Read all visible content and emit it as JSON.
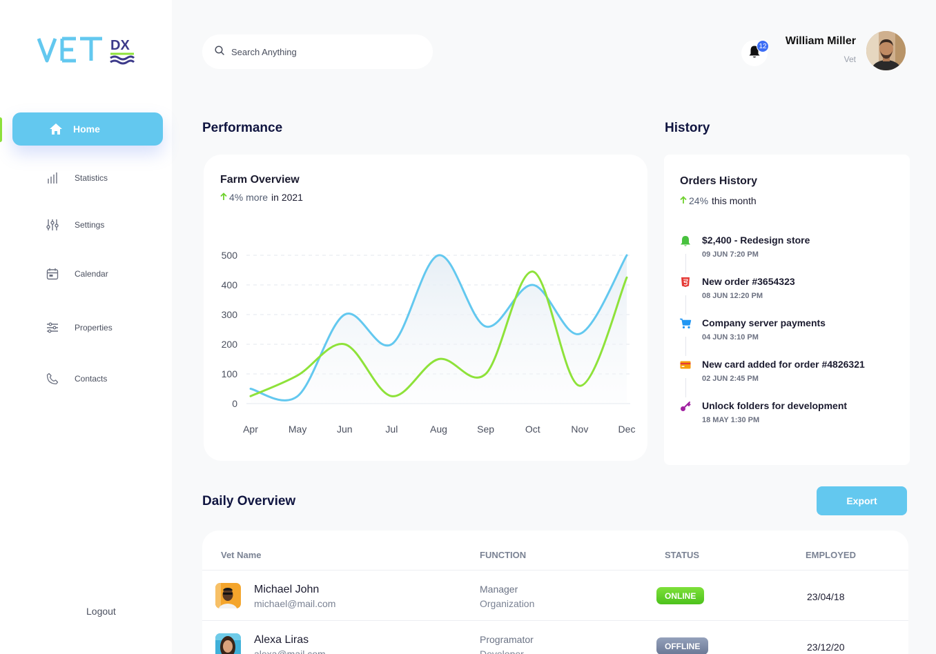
{
  "app": {
    "logo_text": "VET",
    "logo_sub": "DX"
  },
  "sidebar": {
    "items": [
      {
        "label": "Home",
        "icon": "home-icon"
      },
      {
        "label": "Statistics",
        "icon": "statistics-icon"
      },
      {
        "label": "Settings",
        "icon": "settings-icon"
      },
      {
        "label": "Calendar",
        "icon": "calendar-icon"
      },
      {
        "label": "Properties",
        "icon": "properties-icon"
      },
      {
        "label": "Contacts",
        "icon": "phone-icon"
      }
    ],
    "logout": "Logout"
  },
  "header": {
    "search_placeholder": "Search Anything",
    "notifications": "12",
    "user_name": "William Miller",
    "user_role": "Vet"
  },
  "performance": {
    "section_title": "Performance",
    "card_title": "Farm Overview",
    "trend_value": "4% more",
    "trend_suffix": "in 2021"
  },
  "chart_data": {
    "type": "line",
    "categories": [
      "Apr",
      "May",
      "Jun",
      "Jul",
      "Aug",
      "Sep",
      "Oct",
      "Nov",
      "Dec"
    ],
    "ylim": [
      0,
      500
    ],
    "yticks": [
      "0",
      "100",
      "200",
      "300",
      "400",
      "500"
    ],
    "grid": true,
    "series": [
      {
        "color": "#63c8ef",
        "values": [
          50,
          25,
          300,
          200,
          500,
          260,
          400,
          235,
          500
        ]
      },
      {
        "color": "#8ee23a",
        "values": [
          25,
          95,
          200,
          25,
          150,
          100,
          445,
          60,
          425
        ]
      }
    ]
  },
  "history": {
    "section_title": "History",
    "card_title": "Orders History",
    "trend_value": "24%",
    "trend_suffix": "this month",
    "items": [
      {
        "title": "$2,400 - Redesign store",
        "time": "09 JUN 7:20 PM",
        "icon": "bell-icon",
        "color": "#48c13e"
      },
      {
        "title": "New order #3654323",
        "time": "08 JUN 12:20 PM",
        "icon": "html5-icon",
        "color": "#e53935"
      },
      {
        "title": "Company server payments",
        "time": "04 JUN 3:10 PM",
        "icon": "cart-icon",
        "color": "#2196f3"
      },
      {
        "title": "New card added for order #4826321",
        "time": "02 JUN 2:45 PM",
        "icon": "credit-card-icon",
        "color": "#f59e0b"
      },
      {
        "title": "Unlock folders for development",
        "time": "18 MAY 1:30 PM",
        "icon": "key-icon",
        "color": "#a020a0"
      }
    ]
  },
  "daily": {
    "section_title": "Daily Overview",
    "export_label": "Export",
    "columns": [
      "Vet Name",
      "FUNCTION",
      "STATUS",
      "EMPLOYED"
    ],
    "rows": [
      {
        "name": "Michael John",
        "email": "michael@mail.com",
        "function": "Manager",
        "department": "Organization",
        "status": "ONLINE",
        "status_color": "#6fd12e",
        "employed": "23/04/18"
      },
      {
        "name": "Alexa Liras",
        "email": "alexa@mail.com",
        "function": "Programator",
        "department": "Developer",
        "status": "OFFLINE",
        "status_color": "#7d8aa5",
        "employed": "23/12/20"
      }
    ]
  }
}
